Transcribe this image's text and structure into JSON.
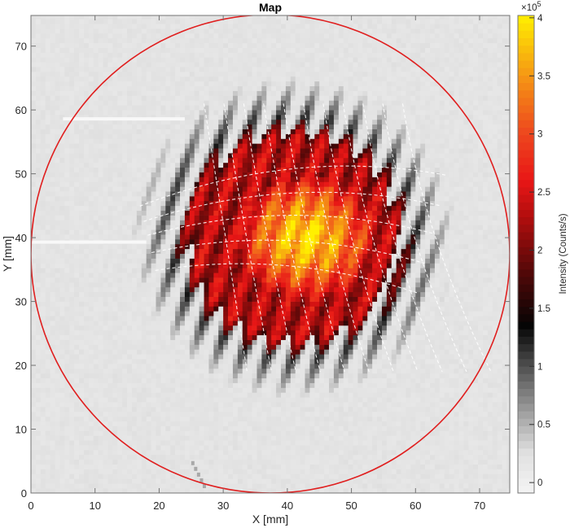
{
  "chart_data": {
    "type": "heatmap",
    "title": "Map",
    "xlabel": "X [mm]",
    "ylabel": "Y [mm]",
    "xlim": [
      0,
      74.7
    ],
    "ylim": [
      0,
      74.8
    ],
    "xticks": [
      0,
      10,
      20,
      30,
      40,
      50,
      60,
      70
    ],
    "yticks": [
      0,
      10,
      20,
      30,
      40,
      50,
      60,
      70
    ],
    "grid": false,
    "colorbar": {
      "label": "Intensity (Counts/s)",
      "exponent_label": "×10",
      "exponent_power": "5",
      "range": [
        -0.09,
        4.02
      ],
      "ticks": [
        0,
        0.5,
        1,
        1.5,
        2,
        2.5,
        3,
        3.5,
        4
      ],
      "tick_labels": [
        "0",
        "0.5",
        "1",
        "1.5",
        "2",
        "2.5",
        "3",
        "3.5",
        "4"
      ],
      "colormap": "gray-to-black-to-red-to-yellow (white at 0, black near 1.3, red near 2.5, yellow at 4)"
    },
    "background_value": 0.2,
    "spot": {
      "center_mm": [
        41,
        40
      ],
      "radius_x_mm": 18,
      "radius_y_mm": 18,
      "peak_value": 4.0,
      "peak_center_mm": [
        43,
        40
      ],
      "description": "Bright roughly circular intensity region with yellow core (~3.5-4e5) around x=35-48, y=33-45, red periphery (~2.5e5), black/gray jagged striated edge"
    },
    "overlay_circle": {
      "color": "#e01f1f",
      "center_mm": [
        37.4,
        37.4
      ],
      "radius_mm": 37.4,
      "note": "Red boundary circle inscribed in the axes, clipped at the axes edges"
    },
    "overlay_grid": {
      "color": "#ffffff",
      "style": "dashed",
      "description": "Curved dashed white grid lines: ~5 horizontal arcs (y≈30-50) and ~10 near-vertical arcs across the spot"
    },
    "artifacts": [
      {
        "type": "white streak",
        "x_mm": [
          5,
          24
        ],
        "y_mm": 58.6
      },
      {
        "type": "white streak",
        "x_mm": [
          0,
          18
        ],
        "y_mm": 39.3
      },
      {
        "type": "gray specks",
        "x_mm": [
          25,
          27
        ],
        "y_mm": [
          1,
          5
        ]
      }
    ]
  },
  "colors": {
    "axes_background": "#e6e6e6",
    "axes_edge": "#737373",
    "circle": "#e01f1f",
    "text": "#262626"
  }
}
